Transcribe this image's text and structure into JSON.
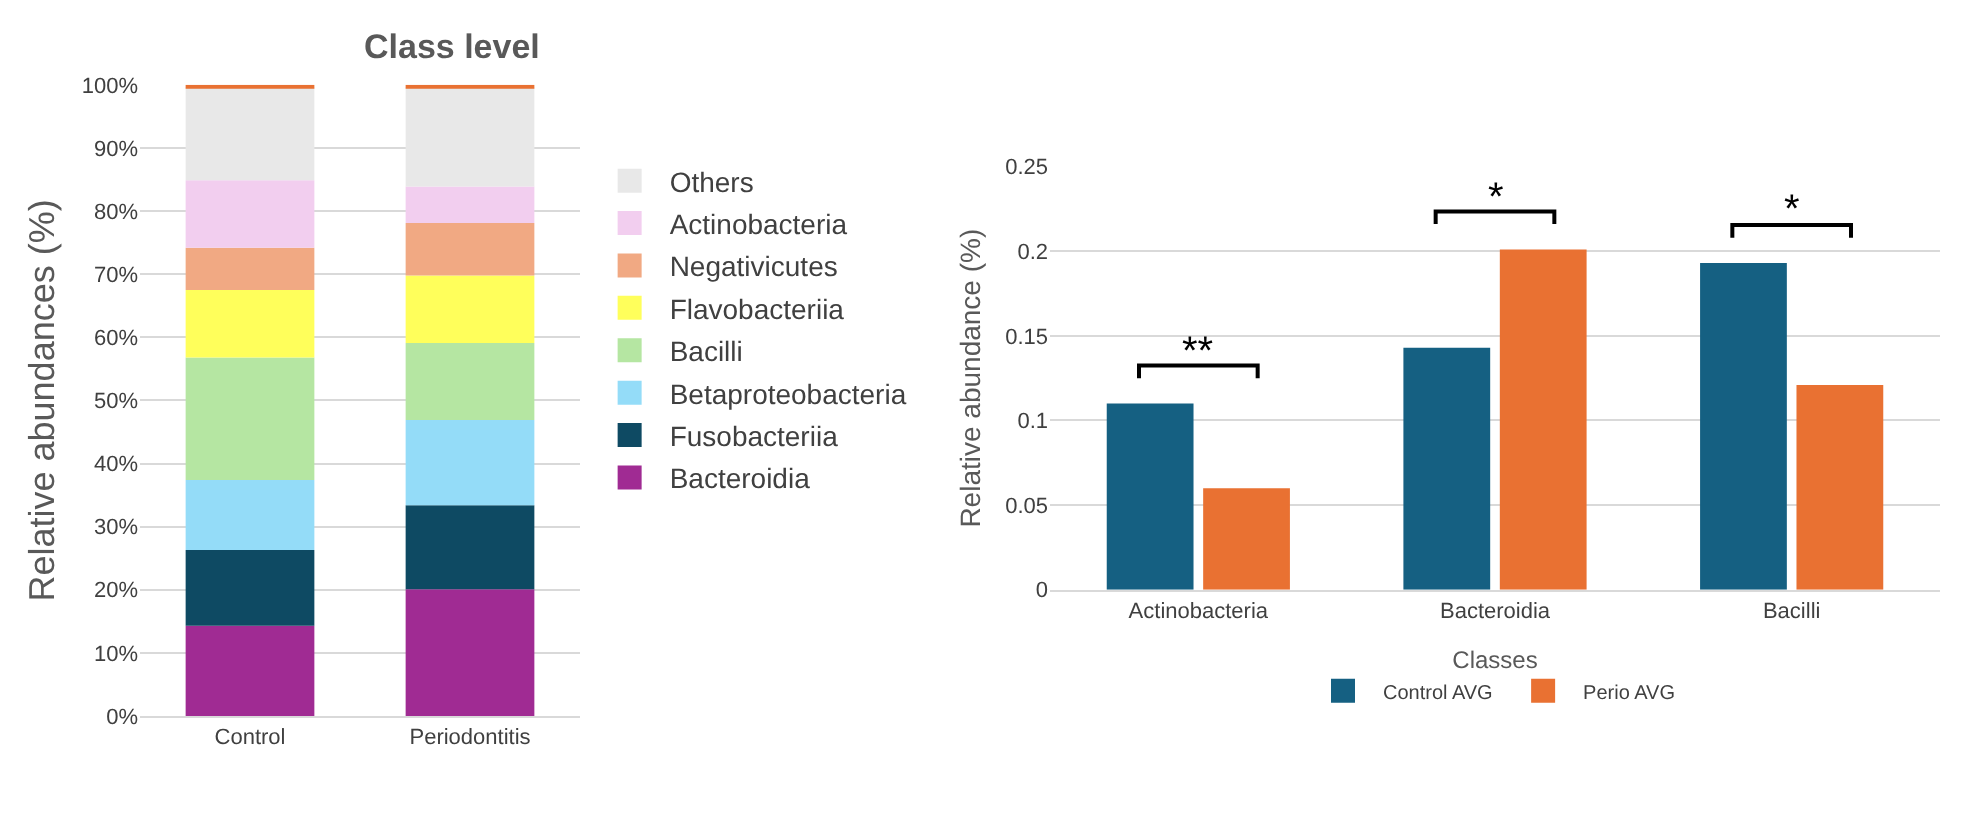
{
  "chart_data": [
    {
      "type": "bar",
      "title": "Class level",
      "ylabel": "Relative abundances (%)",
      "stacked": true,
      "categories": [
        "Control",
        "Periodontitis"
      ],
      "series": [
        {
          "name": "Bacteroidia",
          "color": "#a02b93",
          "values": [
            14.3,
            20.1
          ]
        },
        {
          "name": "Fusobacteriia",
          "color": "#0e4a63",
          "values": [
            12.0,
            13.3
          ]
        },
        {
          "name": "Betaproteobacteria",
          "color": "#94dcf8",
          "values": [
            11.1,
            13.5
          ]
        },
        {
          "name": "Bacilli",
          "color": "#b5e6a2",
          "values": [
            19.4,
            12.2
          ]
        },
        {
          "name": "Flavobacteriia",
          "color": "#ffff5b",
          "values": [
            10.7,
            10.7
          ]
        },
        {
          "name": "Negativicutes",
          "color": "#f1a983",
          "values": [
            6.7,
            8.3
          ]
        },
        {
          "name": "Actinobacteria",
          "color": "#f2ceef",
          "values": [
            10.7,
            5.8
          ]
        },
        {
          "name": "Others",
          "color": "#e8e8e8",
          "values": [
            14.7,
            15.7
          ]
        },
        {
          "color": "#e97132",
          "values": [
            0.4,
            0.4
          ]
        }
      ],
      "ylim": [
        0,
        100
      ],
      "yticks": [
        {
          "value": 0,
          "label": "0%"
        },
        {
          "value": 10,
          "label": "10%"
        },
        {
          "value": 20,
          "label": "20%"
        },
        {
          "value": 30,
          "label": "30%"
        },
        {
          "value": 40,
          "label": "40%"
        },
        {
          "value": 50,
          "label": "50%"
        },
        {
          "value": 60,
          "label": "60%"
        },
        {
          "value": 70,
          "label": "70%"
        },
        {
          "value": 80,
          "label": "80%"
        },
        {
          "value": 90,
          "label": "90%"
        },
        {
          "value": 100,
          "label": "100%"
        }
      ],
      "grid": "y",
      "legend": "right"
    },
    {
      "type": "bar",
      "xlabel": "Classes",
      "ylabel": "Relative abundance (%)",
      "categories": [
        "Actinobacteria",
        "Bacteroidia",
        "Bacilli"
      ],
      "series": [
        {
          "name": "Control AVG",
          "color": "#156082",
          "values": [
            0.11,
            0.143,
            0.193
          ]
        },
        {
          "name": "Perio AVG",
          "color": "#e97132",
          "values": [
            0.06,
            0.201,
            0.121
          ]
        }
      ],
      "ylim": [
        0,
        0.25
      ],
      "yticks": [
        0,
        0.05,
        0.1,
        0.15,
        0.2,
        0.25
      ],
      "annotations": [
        "**",
        "*",
        "*"
      ],
      "grid": "y",
      "legend": "bottom"
    }
  ]
}
